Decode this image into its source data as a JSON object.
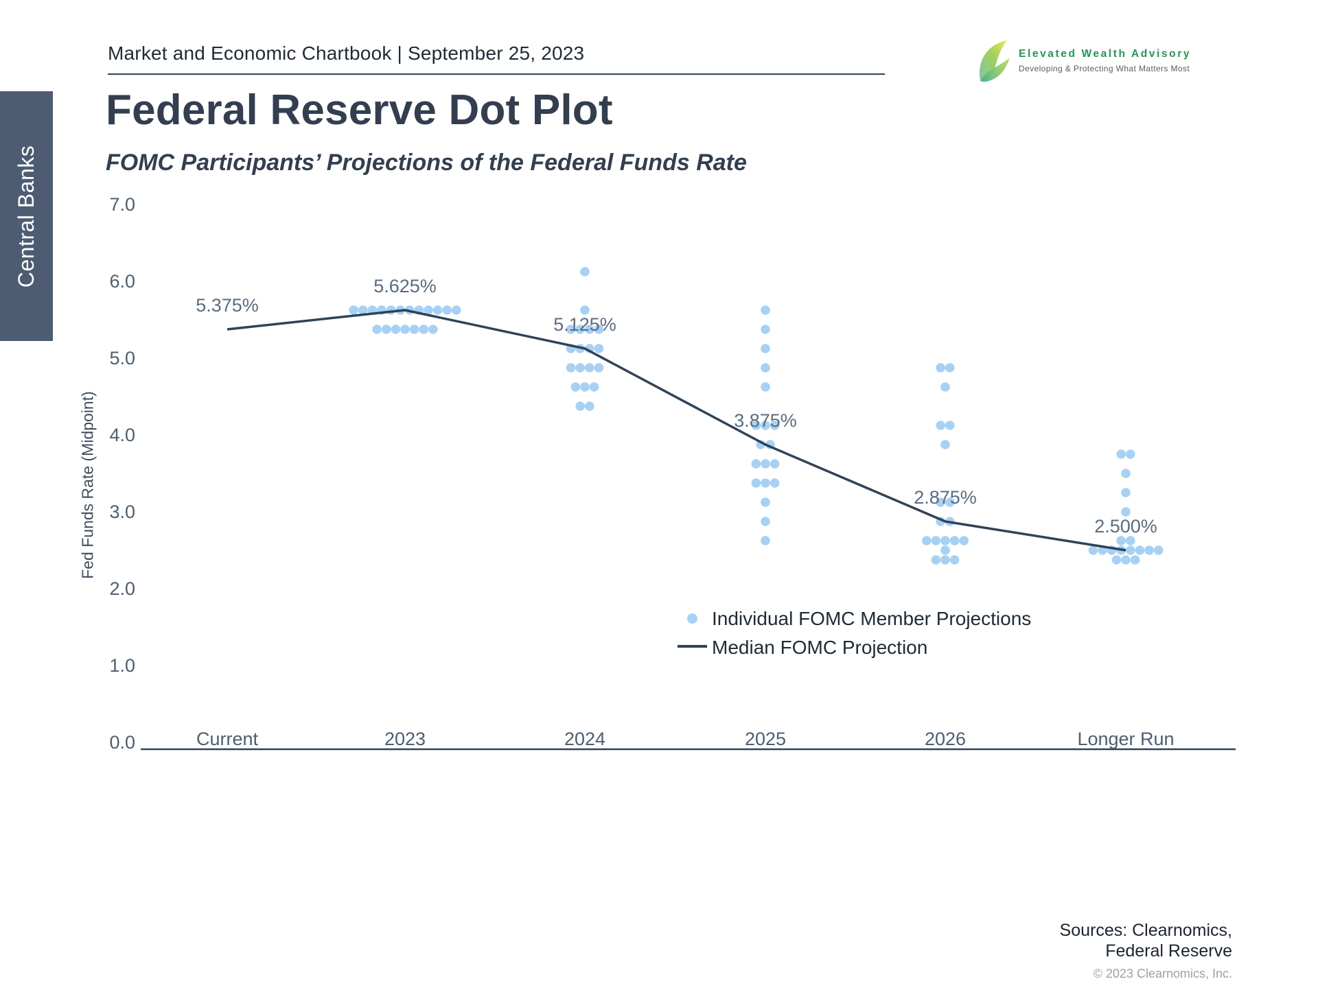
{
  "page": {
    "header": {
      "title": "Market and Economic Chartbook | September 25, 2023"
    },
    "logo": {
      "name": "Elevated Wealth Advisory",
      "tagline": "Developing & Protecting What Matters Most",
      "brand_green": "#239552"
    },
    "sidebar_tab": "Central Banks",
    "title": "Federal Reserve Dot Plot",
    "subtitle": "FOMC Participants’ Projections of the Federal Funds Rate",
    "footer": {
      "sources_line1": "Sources: Clearnomics,",
      "sources_line2": "Federal Reserve",
      "copyright": "© 2023 Clearnomics, Inc."
    }
  },
  "chart_data": {
    "type": "scatter",
    "title": "Federal Reserve Dot Plot",
    "subtitle": "FOMC Participants’ Projections of the Federal Funds Rate",
    "xlabel": "",
    "ylabel": "Fed Funds Rate (Midpoint)",
    "ylim": [
      0.0,
      7.0
    ],
    "grid": false,
    "legend_position": "lower-center-right",
    "yticks": [
      0,
      1,
      2,
      3,
      4,
      5,
      6,
      7
    ],
    "ytick_labels": [
      "0.0",
      "1.0",
      "2.0",
      "3.0",
      "4.0",
      "5.0",
      "6.0",
      "7.0"
    ],
    "categories": [
      "Current",
      "2023",
      "2024",
      "2025",
      "2026",
      "Longer Run"
    ],
    "median": {
      "name": "Median FOMC Projection",
      "values": [
        5.375,
        5.625,
        5.125,
        3.875,
        2.875,
        2.5
      ],
      "labels": [
        "5.375%",
        "5.625%",
        "5.125%",
        "3.875%",
        "2.875%",
        "2.500%"
      ],
      "color": "#2F4356"
    },
    "dots": {
      "name": "Individual FOMC Member Projections",
      "color": "#A7D1F4",
      "columns": [
        {
          "category": "Current",
          "groups": []
        },
        {
          "category": "2023",
          "groups": [
            [
              5.625,
              12
            ],
            [
              5.375,
              7
            ]
          ]
        },
        {
          "category": "2024",
          "groups": [
            [
              6.125,
              1
            ],
            [
              5.625,
              1
            ],
            [
              5.375,
              4
            ],
            [
              5.125,
              4
            ],
            [
              4.875,
              4
            ],
            [
              4.625,
              3
            ],
            [
              4.375,
              2
            ]
          ]
        },
        {
          "category": "2025",
          "groups": [
            [
              5.625,
              1
            ],
            [
              5.375,
              1
            ],
            [
              5.125,
              1
            ],
            [
              4.875,
              1
            ],
            [
              4.625,
              1
            ],
            [
              4.125,
              3
            ],
            [
              3.875,
              2
            ],
            [
              3.625,
              3
            ],
            [
              3.375,
              3
            ],
            [
              3.125,
              1
            ],
            [
              2.875,
              1
            ],
            [
              2.625,
              1
            ]
          ]
        },
        {
          "category": "2026",
          "groups": [
            [
              4.875,
              2
            ],
            [
              4.625,
              1
            ],
            [
              4.125,
              2
            ],
            [
              3.875,
              1
            ],
            [
              3.125,
              2
            ],
            [
              2.875,
              2
            ],
            [
              2.625,
              5
            ],
            [
              2.5,
              1
            ],
            [
              2.375,
              3
            ]
          ]
        },
        {
          "category": "Longer Run",
          "groups": [
            [
              3.75,
              2
            ],
            [
              3.5,
              1
            ],
            [
              3.25,
              1
            ],
            [
              3.0,
              1
            ],
            [
              2.625,
              2
            ],
            [
              2.5,
              8
            ],
            [
              2.375,
              3
            ]
          ]
        }
      ]
    }
  },
  "legend": {
    "dots_label": "Individual FOMC Member Projections",
    "median_label": "Median FOMC Projection"
  }
}
